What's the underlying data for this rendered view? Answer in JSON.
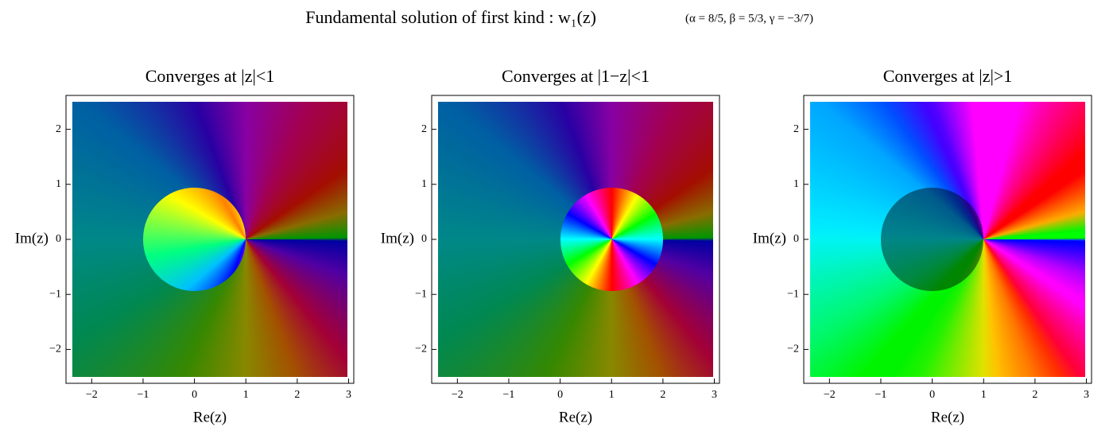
{
  "title": "Fundamental solution of first kind  :  w₁(z)",
  "parameters": "(α = 8/5,  β = 5/3,  γ = −3/7)",
  "chart_data": [
    {
      "type": "domain-coloring",
      "title": "Converges at |z|<1",
      "xlabel": "Re(z)",
      "ylabel": "Im(z)",
      "xlim": [
        -2.5,
        3.1
      ],
      "ylim": [
        -2.5,
        2.5
      ],
      "xticks": [
        {
          "value": -2,
          "label": "−2"
        },
        {
          "value": -1,
          "label": "−1"
        },
        0,
        1,
        2,
        3
      ],
      "yticks": [
        {
          "value": -2,
          "label": "−2"
        },
        {
          "value": -1,
          "label": "−1"
        },
        0,
        1,
        2
      ]
    },
    {
      "type": "domain-coloring",
      "title": "Converges at |1−z|<1",
      "xlabel": "Re(z)",
      "ylabel": "Im(z)",
      "xlim": [
        -2.5,
        3.1
      ],
      "ylim": [
        -2.5,
        2.5
      ],
      "xticks": [
        {
          "value": -2,
          "label": "−2"
        },
        {
          "value": -1,
          "label": "−1"
        },
        0,
        1,
        2,
        3
      ],
      "yticks": [
        {
          "value": -2,
          "label": "−2"
        },
        {
          "value": -1,
          "label": "−1"
        },
        0,
        1,
        2
      ]
    },
    {
      "type": "domain-coloring",
      "title": "Converges at |z|>1",
      "xlabel": "Re(z)",
      "ylabel": "Im(z)",
      "xlim": [
        -2.5,
        3.1
      ],
      "ylim": [
        -2.5,
        2.5
      ],
      "xticks": [
        {
          "value": -2,
          "label": "−2"
        },
        {
          "value": -1,
          "label": "−1"
        },
        0,
        1,
        2,
        3
      ],
      "yticks": [
        {
          "value": -2,
          "label": "−2"
        },
        {
          "value": -1,
          "label": "−1"
        },
        0,
        1,
        2
      ]
    }
  ]
}
